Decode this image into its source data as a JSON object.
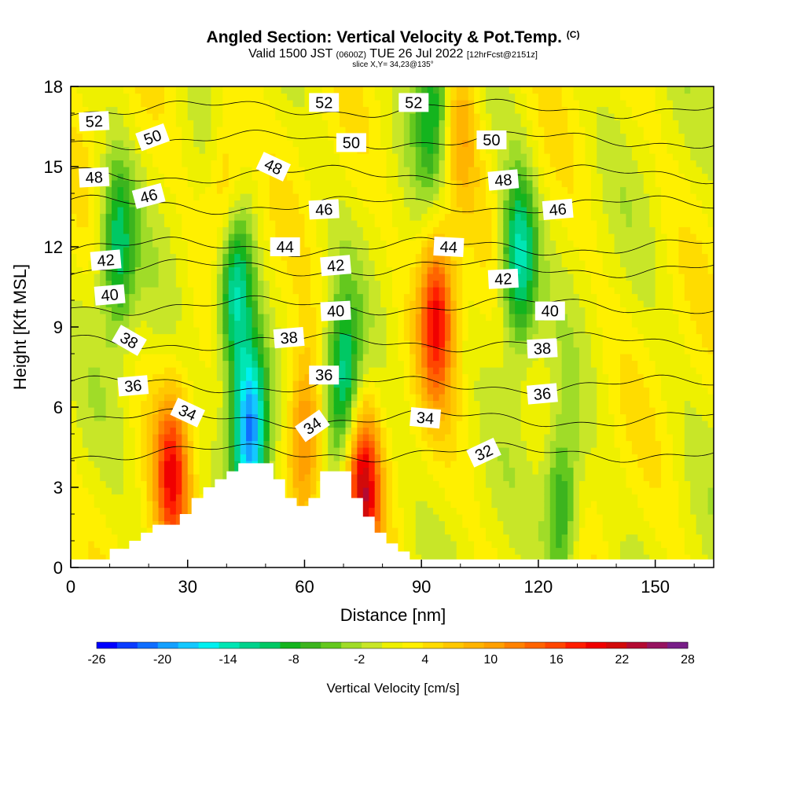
{
  "header": {
    "title": "Angled Section: Vertical Velocity & Pot.Temp.",
    "title_mark": "(C)",
    "valid_prefix": "Valid 1500 JST",
    "valid_zulu": "(0600Z)",
    "valid_date": "TUE 26 Jul 2022",
    "forecast": "[12hrFcst@2151z]",
    "slice": "slice X,Y= 34,23@135°"
  },
  "chart_data": {
    "type": "heatmap",
    "xlabel": "Distance [nm]",
    "ylabel": "Height [Kft MSL]",
    "xlim": [
      0,
      165
    ],
    "ylim": [
      0,
      18
    ],
    "x_ticks": [
      0,
      30,
      60,
      90,
      120,
      150
    ],
    "y_ticks": [
      0,
      3,
      6,
      9,
      12,
      15,
      18
    ],
    "colorbar": {
      "label": "Vertical Velocity [cm/s]",
      "min": -26,
      "max": 28,
      "step": 2,
      "tick_labels": [
        "-26",
        "-20",
        "-14",
        "-8",
        "-2",
        "4",
        "10",
        "16",
        "22",
        "28"
      ],
      "colors": [
        "#0000ff",
        "#0a3cff",
        "#0f6eff",
        "#14a0ff",
        "#14c8ff",
        "#00f0f0",
        "#00e6b4",
        "#00d28c",
        "#00c864",
        "#14b41e",
        "#3cb41e",
        "#64c81e",
        "#a0dc28",
        "#c8e628",
        "#eef000",
        "#fff000",
        "#ffdc00",
        "#ffc800",
        "#ffb400",
        "#ffa000",
        "#ff8200",
        "#ff6400",
        "#ff4600",
        "#ff1e00",
        "#f00000",
        "#d20a0a",
        "#b40a32",
        "#961460",
        "#781e88"
      ]
    },
    "terrain_nm_kft": [
      [
        0,
        0.3
      ],
      [
        10,
        0.3
      ],
      [
        10,
        0.7
      ],
      [
        15,
        0.7
      ],
      [
        15,
        1.0
      ],
      [
        18,
        1.0
      ],
      [
        18,
        1.3
      ],
      [
        21,
        1.3
      ],
      [
        21,
        1.6
      ],
      [
        28,
        1.6
      ],
      [
        28,
        2.0
      ],
      [
        31,
        2.0
      ],
      [
        31,
        2.6
      ],
      [
        34,
        2.6
      ],
      [
        34,
        3.0
      ],
      [
        37,
        3.0
      ],
      [
        37,
        3.3
      ],
      [
        40,
        3.3
      ],
      [
        40,
        3.6
      ],
      [
        43,
        3.6
      ],
      [
        43,
        3.9
      ],
      [
        52,
        3.9
      ],
      [
        52,
        3.3
      ],
      [
        55,
        3.3
      ],
      [
        55,
        2.6
      ],
      [
        58,
        2.6
      ],
      [
        58,
        2.3
      ],
      [
        61,
        2.3
      ],
      [
        61,
        2.6
      ],
      [
        64,
        2.6
      ],
      [
        64,
        3.6
      ],
      [
        72,
        3.6
      ],
      [
        72,
        2.6
      ],
      [
        75,
        2.6
      ],
      [
        75,
        1.9
      ],
      [
        78,
        1.9
      ],
      [
        78,
        1.3
      ],
      [
        81,
        1.3
      ],
      [
        81,
        0.9
      ],
      [
        84,
        0.9
      ],
      [
        84,
        0.6
      ],
      [
        87,
        0.6
      ],
      [
        87,
        0.3
      ],
      [
        165,
        0.3
      ]
    ],
    "updraft_cores": [
      {
        "x": 26,
        "y": 3.5,
        "value": 20
      },
      {
        "x": 60,
        "y": 4.8,
        "value": 18
      },
      {
        "x": 94,
        "y": 9.5,
        "value": 22
      },
      {
        "x": 75,
        "y": 3.0,
        "value": 24
      },
      {
        "x": 40,
        "y": 14.0,
        "value": 12
      },
      {
        "x": 100,
        "y": 16.5,
        "value": 12
      }
    ],
    "downdraft_cores": [
      {
        "x": 46,
        "y": 5.2,
        "value": -22
      },
      {
        "x": 42,
        "y": 10.3,
        "value": -14
      },
      {
        "x": 115,
        "y": 11.5,
        "value": -14
      },
      {
        "x": 12,
        "y": 12.0,
        "value": -10
      },
      {
        "x": 70,
        "y": 6.8,
        "value": -12
      },
      {
        "x": 126,
        "y": 2.2,
        "value": -8
      },
      {
        "x": 93,
        "y": 17.5,
        "value": -8
      }
    ],
    "theta_levels": [
      {
        "level": "32",
        "labels": [
          {
            "x": 106,
            "y": 4.3,
            "angle": -25
          }
        ]
      },
      {
        "level": "34",
        "labels": [
          {
            "x": 30,
            "y": 5.8,
            "angle": 25
          },
          {
            "x": 62,
            "y": 5.3,
            "angle": -35
          },
          {
            "x": 91,
            "y": 5.6,
            "angle": 5
          }
        ]
      },
      {
        "level": "36",
        "labels": [
          {
            "x": 16,
            "y": 6.8,
            "angle": -5
          },
          {
            "x": 65,
            "y": 7.2,
            "angle": 0
          },
          {
            "x": 121,
            "y": 6.5,
            "angle": -5
          }
        ]
      },
      {
        "level": "38",
        "labels": [
          {
            "x": 15,
            "y": 8.5,
            "angle": 30
          },
          {
            "x": 56,
            "y": 8.6,
            "angle": -5
          },
          {
            "x": 121,
            "y": 8.2,
            "angle": -3
          }
        ]
      },
      {
        "level": "40",
        "labels": [
          {
            "x": 10,
            "y": 10.2,
            "angle": -5
          },
          {
            "x": 68,
            "y": 9.6,
            "angle": -3
          },
          {
            "x": 123,
            "y": 9.6,
            "angle": 0
          }
        ]
      },
      {
        "level": "42",
        "labels": [
          {
            "x": 9,
            "y": 11.5,
            "angle": -5
          },
          {
            "x": 68,
            "y": 11.3,
            "angle": -5
          },
          {
            "x": 111,
            "y": 10.8,
            "angle": -3
          }
        ]
      },
      {
        "level": "44",
        "labels": [
          {
            "x": 55,
            "y": 12.0,
            "angle": 0
          },
          {
            "x": 97,
            "y": 12.0,
            "angle": 3
          }
        ]
      },
      {
        "level": "46",
        "labels": [
          {
            "x": 20,
            "y": 13.9,
            "angle": -15
          },
          {
            "x": 65,
            "y": 13.4,
            "angle": -3
          },
          {
            "x": 125,
            "y": 13.4,
            "angle": -5
          }
        ]
      },
      {
        "level": "48",
        "labels": [
          {
            "x": 6,
            "y": 14.6,
            "angle": -3
          },
          {
            "x": 52,
            "y": 15.0,
            "angle": 25
          },
          {
            "x": 111,
            "y": 14.5,
            "angle": -5
          }
        ]
      },
      {
        "level": "50",
        "labels": [
          {
            "x": 21,
            "y": 16.1,
            "angle": -20
          },
          {
            "x": 72,
            "y": 15.9,
            "angle": 0
          },
          {
            "x": 108,
            "y": 16.0,
            "angle": 0
          }
        ]
      },
      {
        "level": "52",
        "labels": [
          {
            "x": 6,
            "y": 16.7,
            "angle": -3
          },
          {
            "x": 65,
            "y": 17.4,
            "angle": 0
          },
          {
            "x": 88,
            "y": 17.4,
            "angle": 0
          }
        ]
      }
    ]
  }
}
